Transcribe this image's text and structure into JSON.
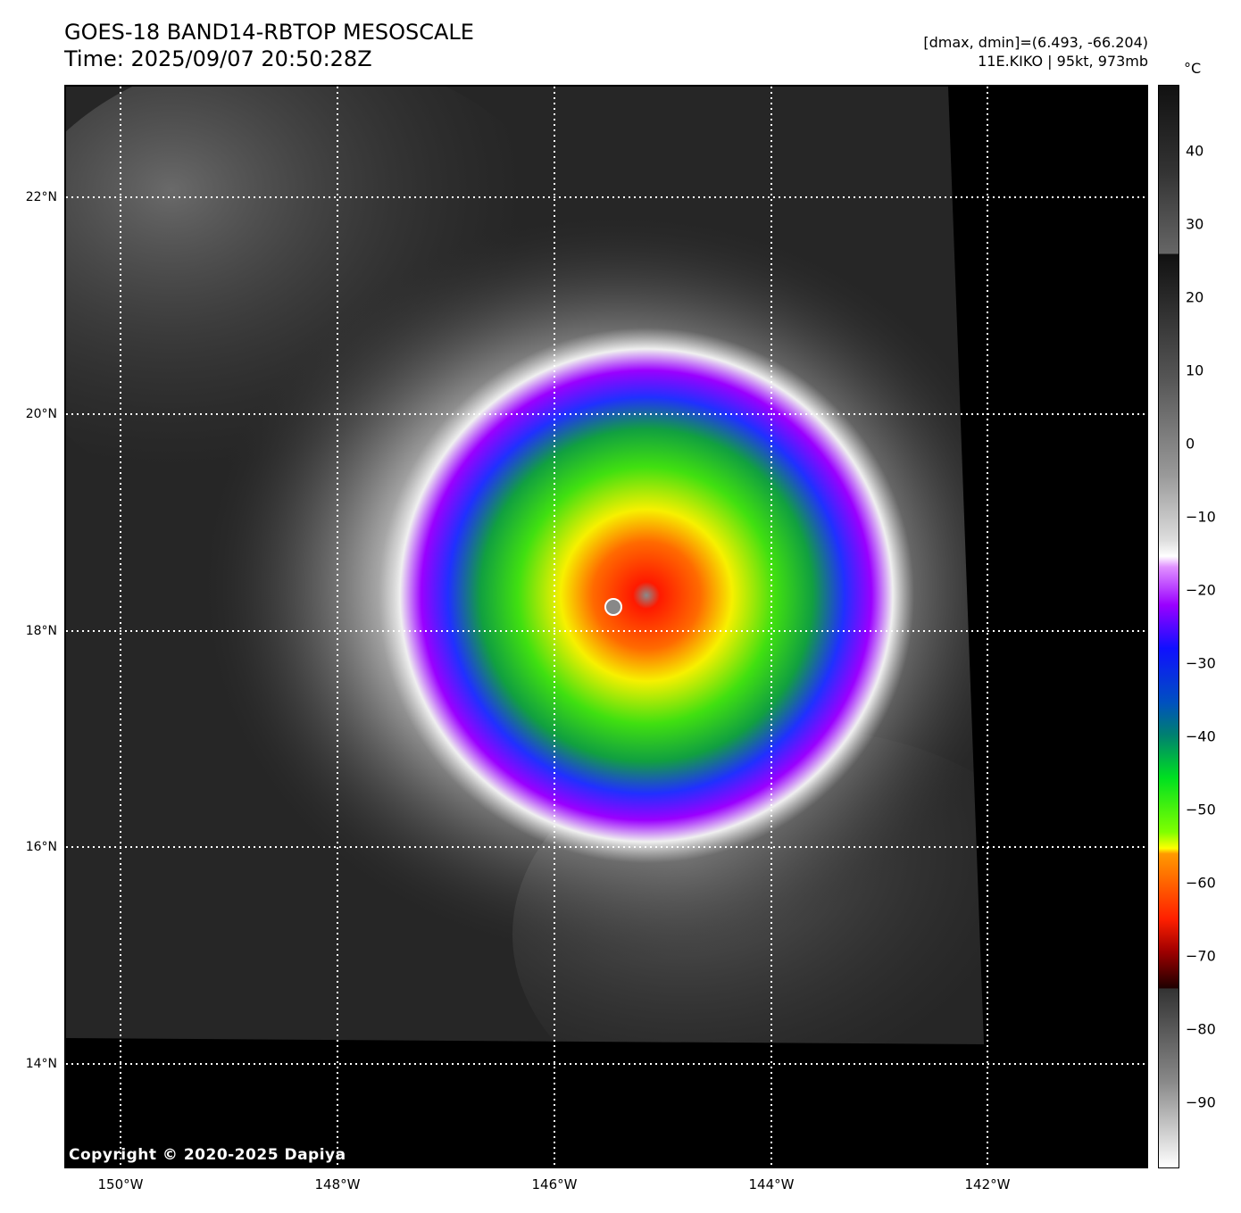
{
  "header": {
    "title": "GOES-18 BAND14-RBTOP MESOSCALE",
    "time": "Time: 2025/09/07 20:50:28Z",
    "range": "[dmax, dmin]=(6.493, -66.204)",
    "storm": "11E.KIKO | 95kt, 973mb"
  },
  "map": {
    "lat_labels": [
      "22°N",
      "20°N",
      "18°N",
      "16°N",
      "14°N"
    ],
    "lon_labels": [
      "150°W",
      "148°W",
      "146°W",
      "144°W",
      "142°W"
    ],
    "copyright": "Copyright © 2020-2025 Dapiya"
  },
  "colorbar": {
    "unit": "°C",
    "ticks": [
      "40",
      "30",
      "20",
      "10",
      "0",
      "−10",
      "−20",
      "−30",
      "−40",
      "−50",
      "−60",
      "−70",
      "−80",
      "−90"
    ],
    "range": [
      -99,
      49
    ]
  }
}
